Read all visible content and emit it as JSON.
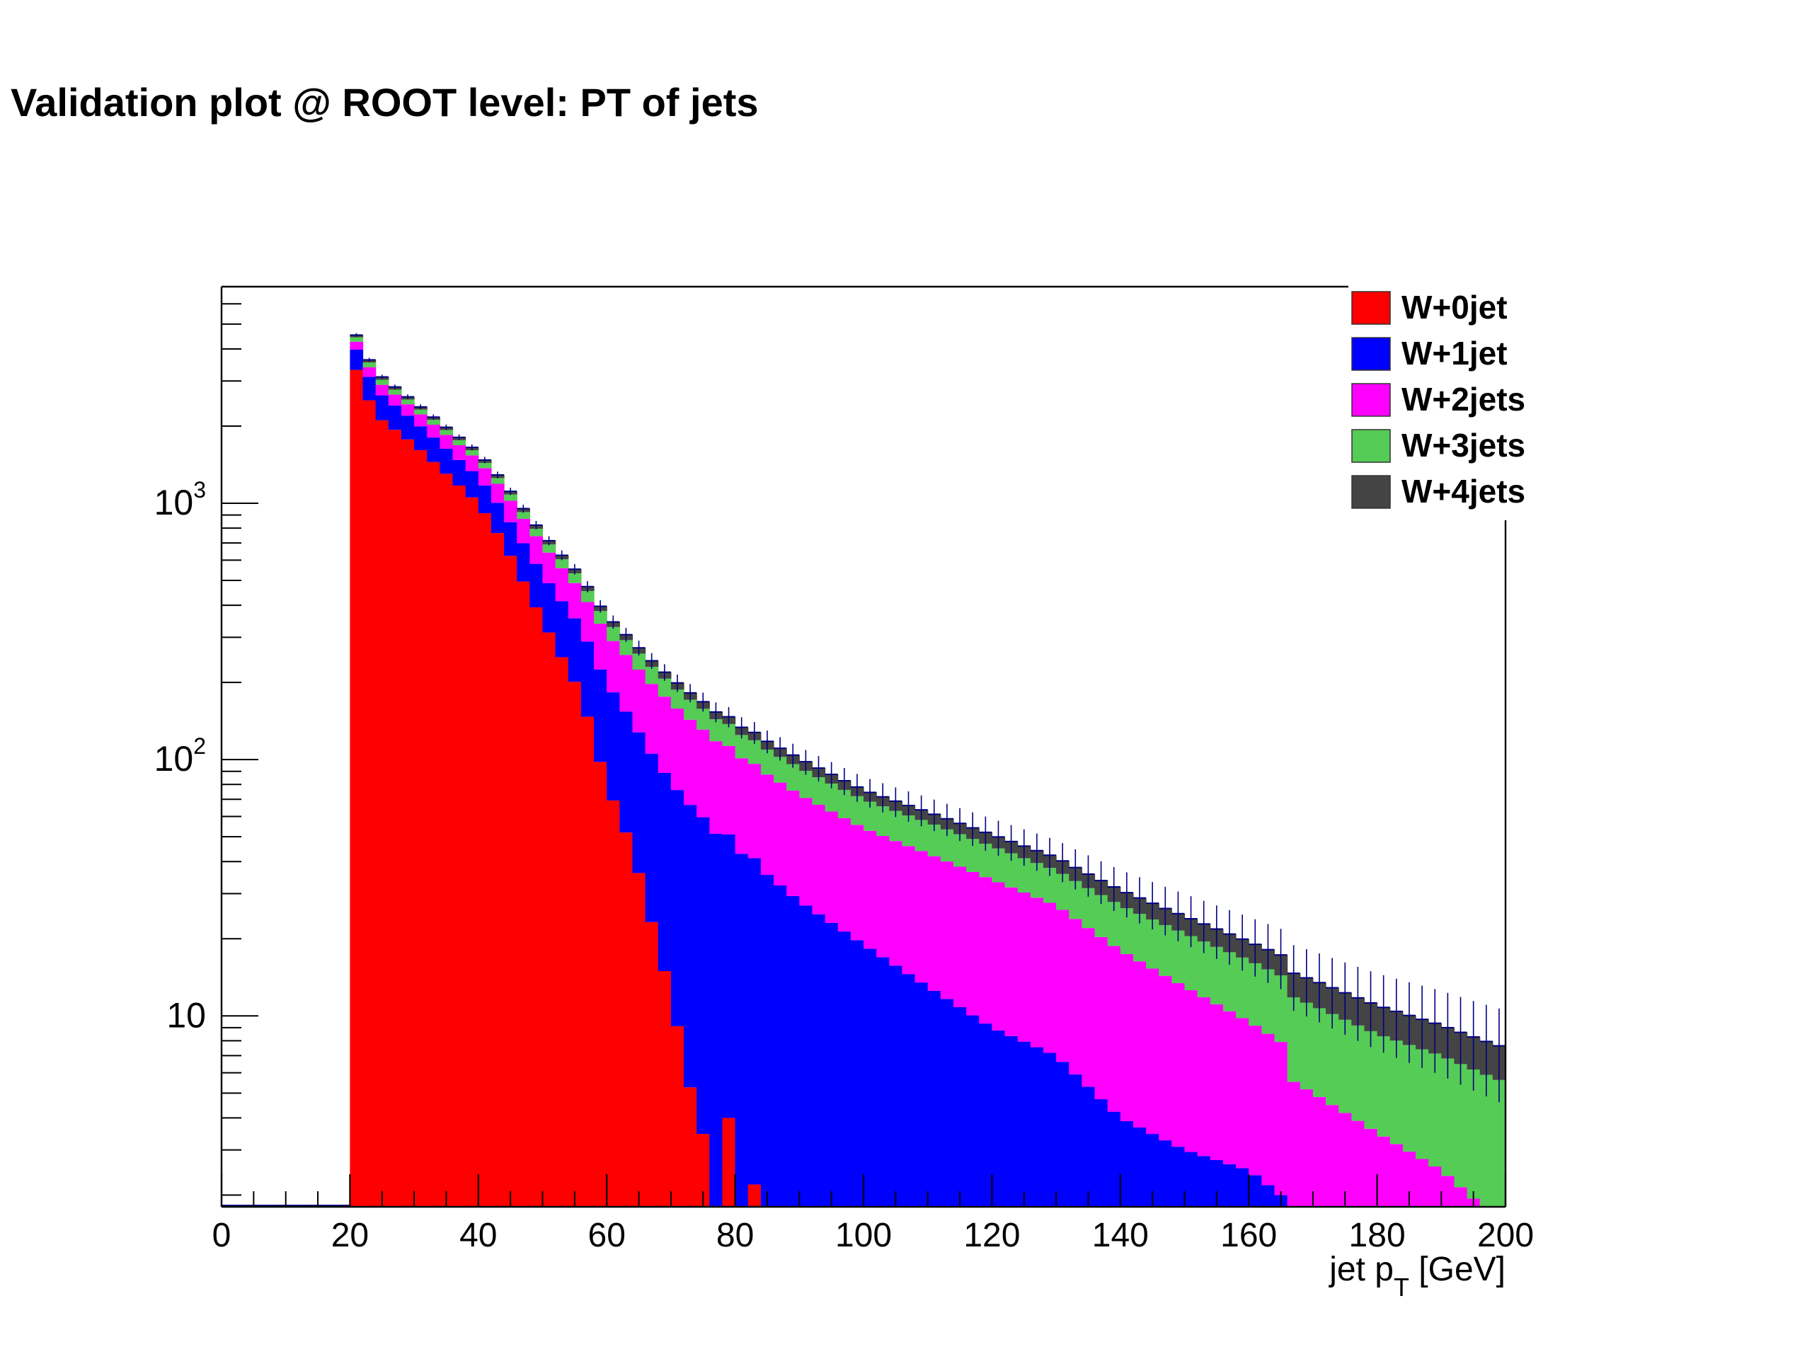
{
  "slide": {
    "title": "Validation plot @ ROOT level: PT of jets"
  },
  "colors": {
    "W+0jet": "#ff0000",
    "W+1jet": "#0000ff",
    "W+2jets": "#ff00ff",
    "W+3jets": "#55cc55",
    "W+4jets": "#444444",
    "axis": "#000000",
    "error_bar": "#000080"
  },
  "chart_data": {
    "type": "bar",
    "stacked": true,
    "log_y": true,
    "title": "",
    "xlabel_main": "jet p",
    "xlabel_sub": "T",
    "xlabel_unit": " [GeV]",
    "ylabel": "",
    "xlim": [
      0,
      200
    ],
    "ylim": [
      1.8,
      7000
    ],
    "x_ticks": [
      "0",
      "20",
      "40",
      "60",
      "80",
      "100",
      "120",
      "140",
      "160",
      "180",
      "200"
    ],
    "y_ticks": [
      {
        "value": 10,
        "base": "10",
        "exp": ""
      },
      {
        "value": 100,
        "base": "10",
        "exp": "2"
      },
      {
        "value": 1000,
        "base": "10",
        "exp": "3"
      }
    ],
    "legend_position": "top-right",
    "bin_width": 2,
    "series": [
      {
        "name": "W+0jet",
        "points": [
          [
            20,
            3800
          ],
          [
            24,
            2200
          ],
          [
            30,
            1700
          ],
          [
            40,
            1000
          ],
          [
            44,
            700
          ],
          [
            50,
            350
          ],
          [
            56,
            180
          ],
          [
            60,
            80
          ],
          [
            64,
            45
          ],
          [
            70,
            12
          ],
          [
            74,
            4
          ],
          [
            76,
            3
          ],
          [
            78,
            0
          ],
          [
            80,
            4
          ],
          [
            82,
            0
          ],
          [
            84,
            2.2
          ],
          [
            86,
            0
          ]
        ]
      },
      {
        "name": "W+1jet",
        "points": [
          [
            20,
            700
          ],
          [
            30,
            400
          ],
          [
            40,
            270
          ],
          [
            50,
            180
          ],
          [
            56,
            150
          ],
          [
            60,
            120
          ],
          [
            70,
            70
          ],
          [
            80,
            45
          ],
          [
            90,
            28
          ],
          [
            100,
            19
          ],
          [
            110,
            13
          ],
          [
            120,
            9
          ],
          [
            130,
            7
          ],
          [
            140,
            4
          ],
          [
            150,
            3
          ],
          [
            160,
            2.5
          ],
          [
            165,
            2
          ]
        ]
      },
      {
        "name": "W+2jets",
        "points": [
          [
            20,
            300
          ],
          [
            30,
            230
          ],
          [
            40,
            200
          ],
          [
            50,
            160
          ],
          [
            60,
            110
          ],
          [
            70,
            85
          ],
          [
            80,
            60
          ],
          [
            90,
            45
          ],
          [
            100,
            35
          ],
          [
            110,
            30
          ],
          [
            120,
            25
          ],
          [
            130,
            20
          ],
          [
            140,
            14
          ],
          [
            150,
            10
          ],
          [
            160,
            7
          ],
          [
            170,
            5
          ],
          [
            180,
            3.5
          ],
          [
            190,
            2.5
          ],
          [
            200,
            1.5
          ]
        ]
      },
      {
        "name": "W+3jets",
        "points": [
          [
            20,
            180
          ],
          [
            30,
            100
          ],
          [
            40,
            70
          ],
          [
            50,
            50
          ],
          [
            60,
            40
          ],
          [
            70,
            30
          ],
          [
            80,
            24
          ],
          [
            90,
            20
          ],
          [
            100,
            16
          ],
          [
            110,
            14
          ],
          [
            120,
            12
          ],
          [
            130,
            10
          ],
          [
            140,
            9
          ],
          [
            150,
            8
          ],
          [
            160,
            7
          ],
          [
            170,
            6
          ],
          [
            180,
            5
          ],
          [
            190,
            4.5
          ],
          [
            200,
            4
          ]
        ]
      },
      {
        "name": "W+4jets",
        "points": [
          [
            20,
            100
          ],
          [
            30,
            60
          ],
          [
            40,
            40
          ],
          [
            50,
            25
          ],
          [
            60,
            16
          ],
          [
            70,
            12
          ],
          [
            80,
            9
          ],
          [
            90,
            8
          ],
          [
            100,
            6
          ],
          [
            110,
            5.5
          ],
          [
            120,
            5
          ],
          [
            130,
            4.5
          ],
          [
            140,
            4
          ],
          [
            150,
            3.5
          ],
          [
            160,
            3
          ],
          [
            170,
            2.8
          ],
          [
            180,
            2.5
          ],
          [
            190,
            2.2
          ],
          [
            200,
            2
          ]
        ]
      }
    ]
  }
}
